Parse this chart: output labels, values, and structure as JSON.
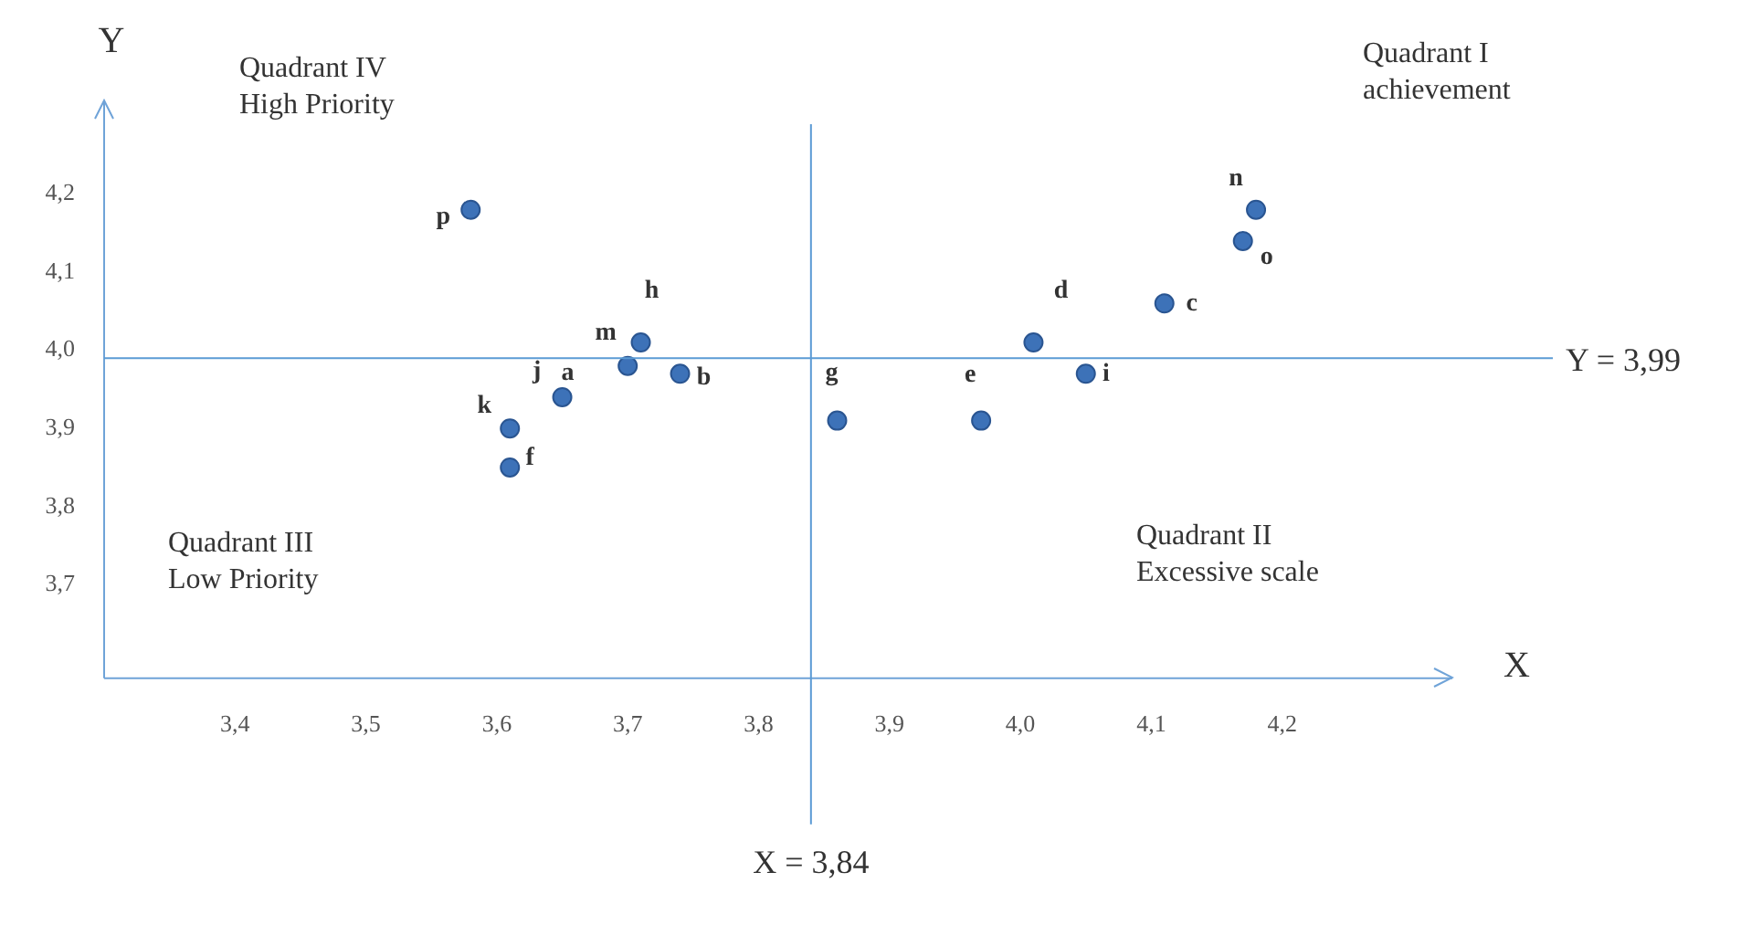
{
  "chart_data": {
    "type": "scatter",
    "xlabel": "X",
    "ylabel": "Y",
    "x": [
      3.58,
      3.71,
      3.7,
      3.74,
      3.65,
      3.61,
      3.61,
      3.86,
      3.97,
      4.01,
      4.05,
      4.11,
      4.18,
      4.17
    ],
    "values": [
      4.18,
      4.01,
      3.98,
      3.97,
      3.94,
      3.9,
      3.85,
      3.91,
      3.91,
      4.01,
      3.97,
      4.06,
      4.18,
      4.14
    ],
    "color": "#3d72b8",
    "marker": "circle",
    "grid": false,
    "legend": false,
    "xlim": [
      3.3,
      4.33
    ],
    "ylim": [
      3.58,
      4.32
    ],
    "xticks": [
      {
        "value": 3.4,
        "label": "3,4"
      },
      {
        "value": 3.5,
        "label": "3,5"
      },
      {
        "value": 3.6,
        "label": "3,6"
      },
      {
        "value": 3.7,
        "label": "3,7"
      },
      {
        "value": 3.8,
        "label": "3,8"
      },
      {
        "value": 3.9,
        "label": "3,9"
      },
      {
        "value": 4.0,
        "label": "4,0"
      },
      {
        "value": 4.1,
        "label": "4,1"
      },
      {
        "value": 4.2,
        "label": "4,2"
      }
    ],
    "yticks": [
      {
        "value": 3.7,
        "label": "3,7"
      },
      {
        "value": 3.8,
        "label": "3,8"
      },
      {
        "value": 3.9,
        "label": "3,9"
      },
      {
        "value": 4.0,
        "label": "4,0"
      },
      {
        "value": 4.1,
        "label": "4,1"
      },
      {
        "value": 4.2,
        "label": "4,2"
      }
    ],
    "ref_lines": [
      {
        "axis": "x",
        "value": 3.84,
        "label": "X = 3,84",
        "color": "#5b9bd5"
      },
      {
        "axis": "y",
        "value": 3.99,
        "label": "Y = 3,99",
        "color": "#5b9bd5"
      }
    ],
    "annotations": [
      "Quadrant IV\nHigh Priority",
      "Quadrant I\nachievement",
      "Quadrant III\nLow Priority",
      "Quadrant II\nExcessive scale",
      {
        "text": "p",
        "x": 3.58,
        "y": 4.18
      },
      {
        "text": "h",
        "x": 3.71,
        "y": 4.01
      },
      {
        "text": "m",
        "x": 3.7,
        "y": 3.98
      },
      {
        "text": "b",
        "x": 3.74,
        "y": 3.97
      },
      {
        "text": "a",
        "x": 3.65,
        "y": 3.94
      },
      {
        "text": "j",
        "x": 3.65,
        "y": 3.94
      },
      {
        "text": "k",
        "x": 3.61,
        "y": 3.9
      },
      {
        "text": "f",
        "x": 3.61,
        "y": 3.85
      },
      {
        "text": "g",
        "x": 3.86,
        "y": 3.91
      },
      {
        "text": "e",
        "x": 3.97,
        "y": 3.91
      },
      {
        "text": "d",
        "x": 4.01,
        "y": 4.01
      },
      {
        "text": "i",
        "x": 4.05,
        "y": 3.97
      },
      {
        "text": "c",
        "x": 4.11,
        "y": 4.06
      },
      {
        "text": "n",
        "x": 4.18,
        "y": 4.18
      },
      {
        "text": "o",
        "x": 4.17,
        "y": 4.14
      }
    ]
  }
}
